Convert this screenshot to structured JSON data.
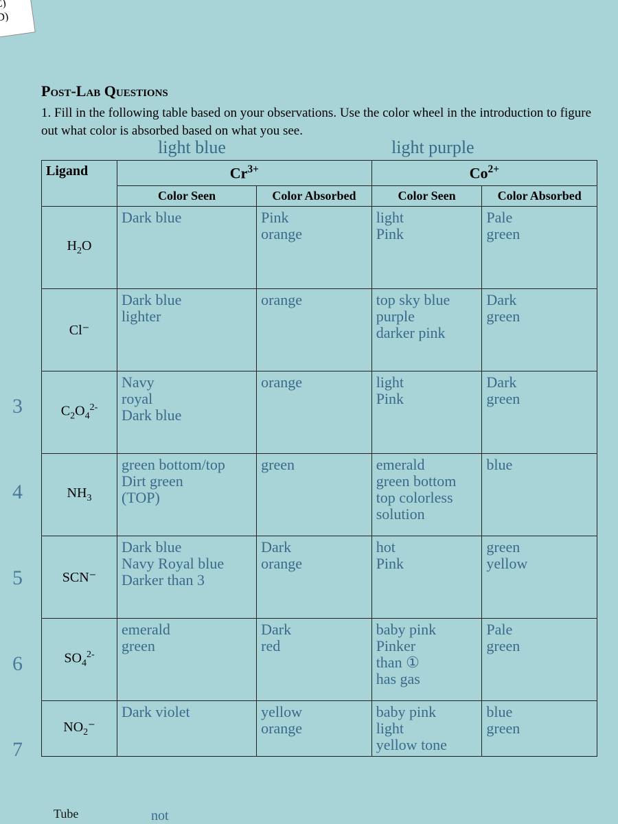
{
  "colors": {
    "paper_bg": "#a8d4d8",
    "ink": "#111111",
    "handwriting": "#3a6a8a",
    "handwriting_faint": "#7aa0b8",
    "border": "#222222"
  },
  "top_tabs": {
    "c": "C)",
    "d": "D)"
  },
  "heading": "Post-Lab Questions",
  "instruction": "1. Fill in the following table based on your observations. Use the color wheel in the introduction to figure out what color is absorbed based on what you see.",
  "hand_top": {
    "left": "light blue",
    "right": "light purple"
  },
  "table": {
    "ligand_label": "Ligand",
    "ions": {
      "cr": "Cr³⁺",
      "co": "Co²⁺"
    },
    "sub": {
      "seen": "Color Seen",
      "absorbed": "Color Absorbed"
    },
    "rows": [
      {
        "num": "",
        "ligand_html": "H<sub>2</sub>O",
        "cr_seen": "Dark blue",
        "cr_abs": "Pink\norange",
        "co_seen": "light\nPink",
        "co_abs": "Pale\ngreen"
      },
      {
        "num": "",
        "ligand_html": "Cl⁻",
        "cr_seen": "Dark blue\nlighter",
        "cr_abs": "orange",
        "co_seen": "top sky blue\npurple\ndarker pink",
        "co_abs": "Dark\ngreen"
      },
      {
        "num": "3",
        "ligand_html": "C<sub>2</sub>O<sub>4</sub><sup>2-</sup>",
        "cr_seen": "Navy\nroyal\nDark blue",
        "cr_abs": "orange",
        "co_seen": "light\nPink",
        "co_abs": "Dark\ngreen"
      },
      {
        "num": "4",
        "ligand_html": "NH<sub>3</sub>",
        "cr_seen": "green bottom/top\nDirt green\n(TOP)",
        "cr_abs": "green",
        "co_seen": "emerald\ngreen bottom\ntop colorless\nsolution",
        "co_abs": "blue"
      },
      {
        "num": "5",
        "ligand_html": "SCN⁻",
        "cr_seen": "Dark blue\nNavy Royal blue\nDarker than 3",
        "cr_abs": "Dark\norange",
        "co_seen": "hot\nPink",
        "co_abs": "green\nyellow"
      },
      {
        "num": "6",
        "ligand_html": "SO<sub>4</sub><sup>2-</sup>",
        "cr_seen": "emerald\ngreen",
        "cr_abs": "Dark\nred",
        "co_seen": "baby pink\nPinker\nthan ①\nhas gas",
        "co_abs": "Pale\ngreen"
      },
      {
        "num": "7",
        "ligand_html": "NO<sub>2</sub>⁻",
        "cr_seen": "Dark violet",
        "cr_abs": "yellow\norange",
        "co_seen": "baby pink\nlight\nyellow tone",
        "co_abs": "blue\ngreen"
      }
    ]
  },
  "bottom_cut": {
    "tube": "Tube",
    "not": "not"
  }
}
